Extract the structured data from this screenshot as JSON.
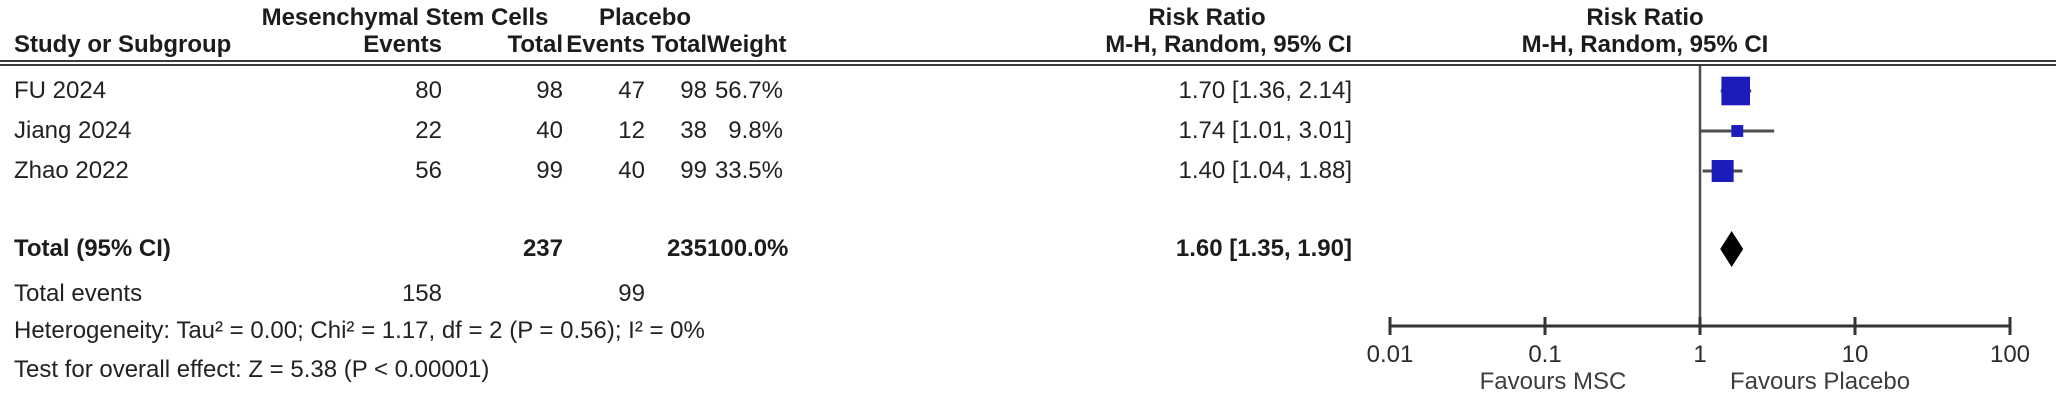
{
  "table": {
    "group1_header": "Mesenchymal Stem Cells",
    "group2_header": "Placebo",
    "col_headers": {
      "study": "Study or Subgroup",
      "events1": "Events",
      "total1": "Total",
      "events2": "Events",
      "total2": "Total",
      "weight": "Weight",
      "ci": "M-H, Random, 95% CI"
    },
    "effect_header": {
      "line1": "Risk Ratio",
      "line2": "M-H, Random, 95% CI"
    },
    "plot_header": {
      "line1": "Risk Ratio",
      "line2": "M-H, Random, 95% CI"
    },
    "rows": [
      {
        "study": "FU 2024",
        "events1": "80",
        "total1": "98",
        "events2": "47",
        "total2": "98",
        "weight": "56.7%",
        "ci_text": "1.70 [1.36, 2.14]"
      },
      {
        "study": "Jiang 2024",
        "events1": "22",
        "total1": "40",
        "events2": "12",
        "total2": "38",
        "weight": "9.8%",
        "ci_text": "1.74 [1.01, 3.01]"
      },
      {
        "study": "Zhao 2022",
        "events1": "56",
        "total1": "99",
        "events2": "40",
        "total2": "99",
        "weight": "33.5%",
        "ci_text": "1.40 [1.04, 1.88]"
      }
    ],
    "total_row": {
      "label": "Total (95% CI)",
      "total1": "237",
      "total2": "235",
      "weight": "100.0%",
      "ci_text": "1.60 [1.35, 1.90]"
    },
    "total_events": {
      "label": "Total events",
      "events1": "158",
      "events2": "99"
    },
    "heterogeneity": "Heterogeneity: Tau² = 0.00; Chi² = 1.17, df = 2 (P = 0.56); I² = 0%",
    "overall_effect": "Test for overall effect: Z = 5.38 (P < 0.00001)"
  },
  "chart_data": {
    "type": "forest",
    "x_scale": "log10",
    "axis_ticks": [
      0.01,
      0.1,
      1,
      10,
      100
    ],
    "axis_tick_labels": [
      "0.01",
      "0.1",
      "1",
      "10",
      "100"
    ],
    "null_line_value": 1,
    "xlim": [
      0.01,
      100
    ],
    "studies": [
      {
        "name": "FU 2024",
        "rr": 1.7,
        "ci_low": 1.36,
        "ci_high": 2.14,
        "weight_pct": 56.7
      },
      {
        "name": "Jiang 2024",
        "rr": 1.74,
        "ci_low": 1.01,
        "ci_high": 3.01,
        "weight_pct": 9.8
      },
      {
        "name": "Zhao 2022",
        "rr": 1.4,
        "ci_low": 1.04,
        "ci_high": 1.88,
        "weight_pct": 33.5
      }
    ],
    "total": {
      "rr": 1.6,
      "ci_low": 1.35,
      "ci_high": 1.9
    },
    "favours_left": "Favours MSC",
    "favours_right": "Favours Placebo",
    "marker_color": "#1c1cba",
    "diamond_color": "#000000",
    "line_color": "#4d4d4d",
    "axis_color": "#333333"
  }
}
